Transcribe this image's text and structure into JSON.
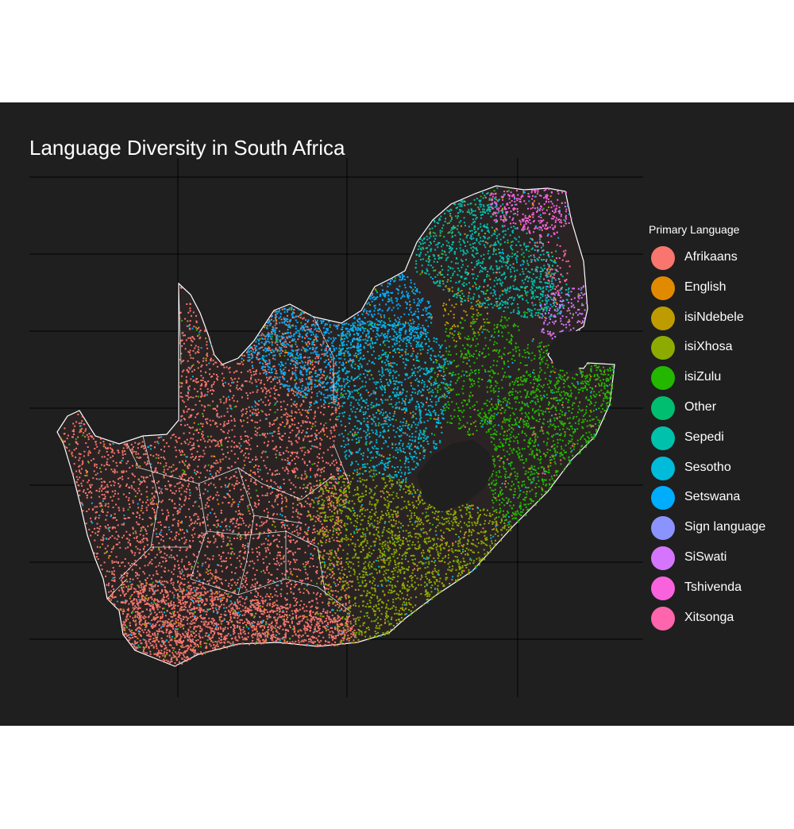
{
  "chart": {
    "title": "Language Diversity in South Africa",
    "legend_title": "Primary Language",
    "background": "#1f1f1f",
    "border_color": "#ffffff",
    "empty_fill": "#2a2323"
  },
  "legend": [
    {
      "label": "Afrikaans",
      "color": "#f8766d"
    },
    {
      "label": "English",
      "color": "#e18a00"
    },
    {
      "label": "isiNdebele",
      "color": "#be9c00"
    },
    {
      "label": "isiXhosa",
      "color": "#8cab00"
    },
    {
      "label": "isiZulu",
      "color": "#24b700"
    },
    {
      "label": "Other",
      "color": "#00be70"
    },
    {
      "label": "Sepedi",
      "color": "#00c1ab"
    },
    {
      "label": "Sesotho",
      "color": "#00bbda"
    },
    {
      "label": "Setswana",
      "color": "#00acfc"
    },
    {
      "label": "Sign language",
      "color": "#8b93ff"
    },
    {
      "label": "SiSwati",
      "color": "#d575fe"
    },
    {
      "label": "Tshivenda",
      "color": "#f962dd"
    },
    {
      "label": "Xitsonga",
      "color": "#ff65ac"
    }
  ]
}
